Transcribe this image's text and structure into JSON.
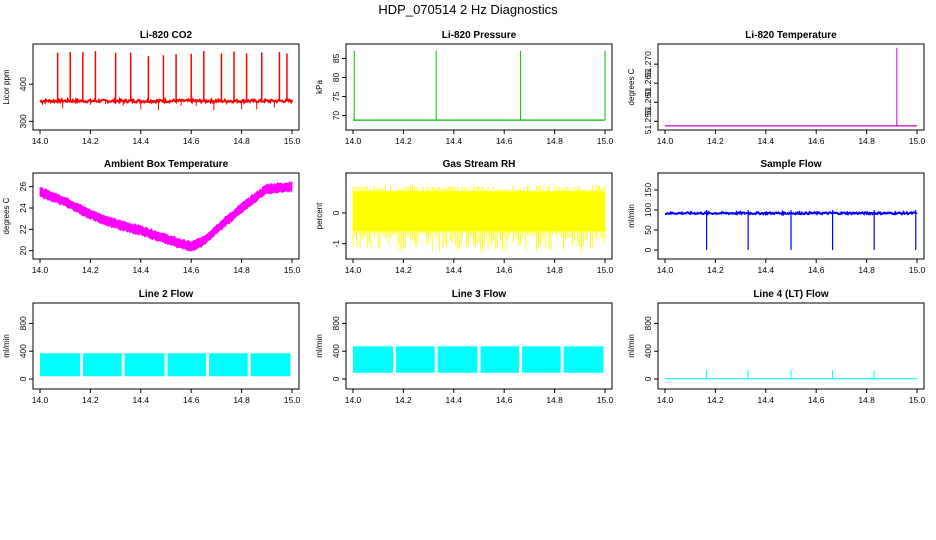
{
  "page": {
    "title": "HDP_070514  2 Hz Diagnostics"
  },
  "colors": {
    "red": "#ff0000",
    "green": "#00c000",
    "magenta": "#ff00ff",
    "yellow": "#ffff00",
    "blue": "#0000ff",
    "cyan": "#00ffff"
  },
  "chart_data": [
    {
      "id": "co2",
      "type": "line",
      "title": "Li-820 CO2",
      "xlabel": "",
      "ylabel": "Licor ppm",
      "xlim": [
        14.0,
        15.0
      ],
      "ylim": [
        285,
        500
      ],
      "xticks": [
        14.0,
        14.2,
        14.4,
        14.6,
        14.8,
        15.0
      ],
      "xtick_labels": [
        "14.0",
        "14.2",
        "14.4",
        "14.6",
        "14.8",
        "15.0"
      ],
      "yticks": [
        300,
        400
      ],
      "ytick_labels": [
        "300",
        "400"
      ],
      "color": "#ff0000",
      "baseline": 355,
      "spikes_up": [
        14.07,
        14.12,
        14.17,
        14.22,
        14.3,
        14.36,
        14.43,
        14.49,
        14.54,
        14.6,
        14.65,
        14.72,
        14.77,
        14.82,
        14.88,
        14.95,
        14.98
      ],
      "spike_top": 490,
      "dips": [
        14.01,
        14.09,
        14.2,
        14.26,
        14.33,
        14.4,
        14.47,
        14.56,
        14.62,
        14.69,
        14.74,
        14.8,
        14.86,
        14.93
      ],
      "dip_min": 330
    },
    {
      "id": "pressure",
      "type": "line",
      "title": "Li-820 Pressure",
      "xlabel": "",
      "ylabel": "kPa",
      "xlim": [
        14.0,
        15.0
      ],
      "ylim": [
        67,
        88
      ],
      "xticks": [
        14.0,
        14.2,
        14.4,
        14.6,
        14.8,
        15.0
      ],
      "xtick_labels": [
        "14.0",
        "14.2",
        "14.4",
        "14.6",
        "14.8",
        "15.0"
      ],
      "yticks": [
        70,
        75,
        80,
        85
      ],
      "ytick_labels": [
        "70",
        "75",
        "80",
        "85"
      ],
      "color": "#00c000",
      "baseline": 68.8,
      "spikes": [
        14.005,
        14.33,
        14.665,
        15.0
      ],
      "spike_top": 87
    },
    {
      "id": "temperature",
      "type": "line",
      "title": "Li-820 Temperature",
      "xlabel": "",
      "ylabel": "degrees C",
      "xlim": [
        14.0,
        15.0
      ],
      "ylim": [
        51.2535,
        51.2745
      ],
      "xticks": [
        14.0,
        14.2,
        14.4,
        14.6,
        14.8,
        15.0
      ],
      "xtick_labels": [
        "14.0",
        "14.2",
        "14.4",
        "14.6",
        "14.8",
        "15.0"
      ],
      "yticks": [
        51.255,
        51.26,
        51.265,
        51.27
      ],
      "ytick_labels": [
        "51.255",
        "51.260",
        "51.265",
        "51.270"
      ],
      "color": "#cc00cc",
      "baseline": 51.2538,
      "spikes": [
        14.92
      ],
      "spike_top": 51.2743
    },
    {
      "id": "boxtemp",
      "type": "area",
      "title": "Ambient Box Temperature",
      "xlabel": "",
      "ylabel": "degrees C",
      "xlim": [
        14.0,
        15.0
      ],
      "ylim": [
        19.5,
        27
      ],
      "xticks": [
        14.0,
        14.2,
        14.4,
        14.6,
        14.8,
        15.0
      ],
      "xtick_labels": [
        "14.0",
        "14.2",
        "14.4",
        "14.6",
        "14.8",
        "15.0"
      ],
      "yticks": [
        20,
        22,
        24,
        26
      ],
      "ytick_labels": [
        "20",
        "22",
        "24",
        "26"
      ],
      "color": "#ff00ff",
      "x": [
        14.0,
        14.1,
        14.2,
        14.3,
        14.4,
        14.5,
        14.55,
        14.6,
        14.65,
        14.7,
        14.8,
        14.9,
        15.0
      ],
      "center": [
        25.5,
        24.6,
        23.4,
        22.5,
        21.9,
        21.1,
        20.7,
        20.4,
        20.9,
        22.0,
        24.0,
        25.8,
        26.0
      ],
      "band": 0.6
    },
    {
      "id": "rh",
      "type": "area",
      "title": "Gas Stream RH",
      "xlabel": "",
      "ylabel": "percent",
      "xlim": [
        14.0,
        15.0
      ],
      "ylim": [
        -1.4,
        1.2
      ],
      "xticks": [
        14.0,
        14.2,
        14.4,
        14.6,
        14.8,
        15.0
      ],
      "xtick_labels": [
        "14.0",
        "14.2",
        "14.4",
        "14.6",
        "14.8",
        "15.0"
      ],
      "yticks": [
        -1,
        0
      ],
      "ytick_labels": [
        "-1",
        "0"
      ],
      "color": "#ffff00",
      "band_low": -0.6,
      "band_high": 0.7,
      "extreme_low": -1.3,
      "extreme_high": 0.9
    },
    {
      "id": "sampleflow",
      "type": "line",
      "title": "Sample Flow",
      "xlabel": "",
      "ylabel": "ml/min",
      "xlim": [
        14.0,
        15.0
      ],
      "ylim": [
        -15,
        185
      ],
      "xticks": [
        14.0,
        14.2,
        14.4,
        14.6,
        14.8,
        15.0
      ],
      "xtick_labels": [
        "14.0",
        "14.2",
        "14.4",
        "14.6",
        "14.8",
        "15.0"
      ],
      "yticks": [
        0,
        50,
        100,
        150
      ],
      "ytick_labels": [
        "0",
        "50",
        "100",
        "150"
      ],
      "color": "#0000ff",
      "baseline": 92,
      "dips": [
        14.165,
        14.33,
        14.5,
        14.665,
        14.83,
        14.995
      ],
      "dip_min": 0
    },
    {
      "id": "line2",
      "type": "area",
      "title": "Line 2 Flow",
      "xlabel": "",
      "ylabel": "ml/min",
      "xlim": [
        14.0,
        15.0
      ],
      "ylim": [
        -100,
        1050
      ],
      "xticks": [
        14.0,
        14.2,
        14.4,
        14.6,
        14.8,
        15.0
      ],
      "xtick_labels": [
        "14.0",
        "14.2",
        "14.4",
        "14.6",
        "14.8",
        "15.0"
      ],
      "yticks": [
        0,
        400,
        800
      ],
      "ytick_labels": [
        "0",
        "400",
        "800"
      ],
      "color": "#00ffff",
      "band_low": 40,
      "band_high": 370,
      "gaps": [
        14.165,
        14.33,
        14.5,
        14.665,
        14.83
      ]
    },
    {
      "id": "line3",
      "type": "area",
      "title": "Line 3 Flow",
      "xlabel": "",
      "ylabel": "ml/min",
      "xlim": [
        14.0,
        15.0
      ],
      "ylim": [
        -100,
        1050
      ],
      "xticks": [
        14.0,
        14.2,
        14.4,
        14.6,
        14.8,
        15.0
      ],
      "xtick_labels": [
        "14.0",
        "14.2",
        "14.4",
        "14.6",
        "14.8",
        "15.0"
      ],
      "yticks": [
        0,
        400,
        800
      ],
      "ytick_labels": [
        "0",
        "400",
        "800"
      ],
      "color": "#00ffff",
      "band_low": 90,
      "band_high": 470,
      "gaps": [
        14.165,
        14.33,
        14.5,
        14.665,
        14.83
      ]
    },
    {
      "id": "line4",
      "type": "line",
      "title": "Line 4 (LT) Flow",
      "xlabel": "",
      "ylabel": "ml/min",
      "xlim": [
        14.0,
        15.0
      ],
      "ylim": [
        -100,
        1050
      ],
      "xticks": [
        14.0,
        14.2,
        14.4,
        14.6,
        14.8,
        15.0
      ],
      "xtick_labels": [
        "14.0",
        "14.2",
        "14.4",
        "14.6",
        "14.8",
        "15.0"
      ],
      "yticks": [
        0,
        400,
        800
      ],
      "ytick_labels": [
        "0",
        "400",
        "800"
      ],
      "color": "#00ffff",
      "baseline": 5,
      "spikes": [
        14.165,
        14.33,
        14.5,
        14.665,
        14.83
      ],
      "spike_top": 130
    }
  ]
}
